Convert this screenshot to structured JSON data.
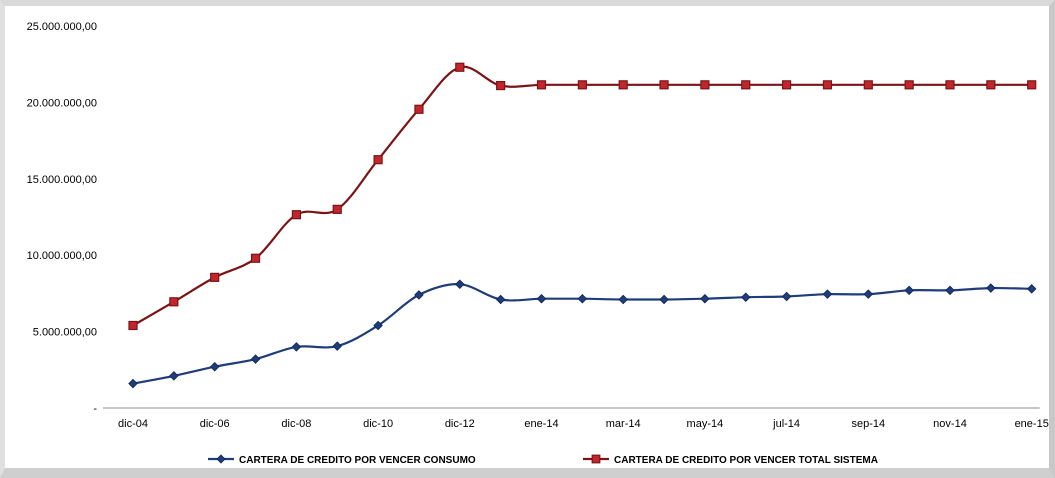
{
  "chart_data": {
    "type": "line",
    "title": "",
    "xlabel": "",
    "ylabel": "",
    "ylim": [
      0,
      25000000
    ],
    "grid": false,
    "legend_position": "bottom",
    "y_ticks": [
      {
        "value": 0,
        "label": "-"
      },
      {
        "value": 5000000,
        "label": "5.000.000,00"
      },
      {
        "value": 10000000,
        "label": "10.000.000,00"
      },
      {
        "value": 15000000,
        "label": "15.000.000,00"
      },
      {
        "value": 20000000,
        "label": "20.000.000,00"
      },
      {
        "value": 25000000,
        "label": "25.000.000,00"
      }
    ],
    "x_tick_labels": [
      {
        "index": 0,
        "label": "dic-04"
      },
      {
        "index": 2,
        "label": "dic-06"
      },
      {
        "index": 4,
        "label": "dic-08"
      },
      {
        "index": 6,
        "label": "dic-10"
      },
      {
        "index": 8,
        "label": "dic-12"
      },
      {
        "index": 10,
        "label": "ene-14"
      },
      {
        "index": 12,
        "label": "mar-14"
      },
      {
        "index": 14,
        "label": "may-14"
      },
      {
        "index": 16,
        "label": "jul-14"
      },
      {
        "index": 18,
        "label": "sep-14"
      },
      {
        "index": 20,
        "label": "nov-14"
      },
      {
        "index": 22,
        "label": "ene-15"
      }
    ],
    "series": [
      {
        "name": "CARTERA DE CREDITO POR VENCER CONSUMO",
        "color": "#1f3d7a",
        "marker": "diamond",
        "values": [
          1600000,
          2100000,
          2700000,
          3200000,
          4000000,
          4050000,
          5400000,
          7400000,
          8100000,
          7100000,
          7150000,
          7150000,
          7100000,
          7100000,
          7150000,
          7250000,
          7300000,
          7450000,
          7450000,
          7700000,
          7700000,
          7850000,
          7800000
        ]
      },
      {
        "name": "CARTERA DE CREDITO POR VENCER TOTAL SISTEMA",
        "color": "#7b1416",
        "marker": "square",
        "marker_fill": "#c0262b",
        "values": [
          5400000,
          6950000,
          8550000,
          9800000,
          12650000,
          13000000,
          16250000,
          19550000,
          22300000,
          21100000,
          21150000,
          21150000,
          21150000,
          21150000,
          21150000,
          21150000,
          21150000,
          21150000,
          21150000,
          21150000,
          21150000,
          21150000,
          21150000
        ]
      }
    ]
  }
}
